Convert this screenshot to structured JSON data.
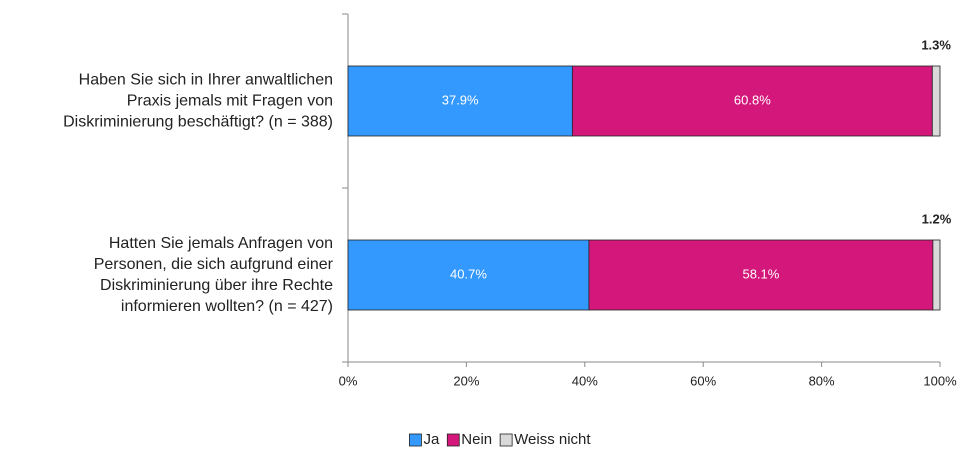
{
  "chart_data": {
    "type": "stacked-barh",
    "categories": [
      "Haben Sie sich in Ihrer anwaltlichen\nPraxis jemals mit Fragen von\nDiskriminierung beschäftigt? (n = 388)",
      "Hatten Sie jemals Anfragen von\nPersonen, die sich aufgrund einer\nDiskriminierung über ihre Rechte\ninformieren wollten? (n = 427)"
    ],
    "series": [
      {
        "name": "Ja",
        "color": "#3399ff",
        "values": [
          37.9,
          40.7
        ],
        "value_labels": [
          "37.9%",
          "40.7%"
        ]
      },
      {
        "name": "Nein",
        "color": "#d4177a",
        "values": [
          60.8,
          58.1
        ],
        "value_labels": [
          "60.8%",
          "58.1%"
        ]
      },
      {
        "name": "Weiss nicht",
        "color": "#d9d9d9",
        "values": [
          1.3,
          1.2
        ],
        "value_labels": [
          "1.3%",
          "1.2%"
        ]
      }
    ],
    "xlim": [
      0,
      100
    ],
    "xticks": [
      {
        "value": 0,
        "label": "0%"
      },
      {
        "value": 20,
        "label": "20%"
      },
      {
        "value": 40,
        "label": "40%"
      },
      {
        "value": 60,
        "label": "60%"
      },
      {
        "value": 80,
        "label": "80%"
      },
      {
        "value": 100,
        "label": "100%"
      }
    ],
    "legend": "bottom"
  }
}
